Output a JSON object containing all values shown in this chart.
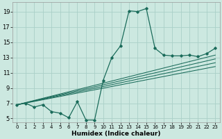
{
  "xlabel": "Humidex (Indice chaleur)",
  "ylabel": "",
  "bg_color": "#cce8e0",
  "line_color": "#1a6b5a",
  "grid_color": "#aad0c8",
  "xlim": [
    -0.5,
    23.5
  ],
  "ylim": [
    4.5,
    20.2
  ],
  "xticks": [
    0,
    1,
    2,
    3,
    4,
    5,
    6,
    7,
    8,
    9,
    10,
    11,
    12,
    13,
    14,
    15,
    16,
    17,
    18,
    19,
    20,
    21,
    22,
    23
  ],
  "yticks": [
    5,
    7,
    9,
    11,
    13,
    15,
    17,
    19
  ],
  "curve1_x": [
    0,
    1,
    2,
    3,
    4,
    5,
    6,
    7,
    8,
    9,
    10,
    11,
    12,
    13,
    14,
    15,
    16,
    17,
    18,
    19,
    20,
    21,
    22,
    23
  ],
  "curve1_y": [
    6.8,
    7.0,
    6.5,
    6.8,
    5.9,
    5.7,
    5.1,
    7.2,
    4.8,
    4.8,
    10.0,
    13.0,
    14.5,
    19.1,
    19.0,
    19.4,
    14.2,
    13.3,
    13.2,
    13.2,
    13.3,
    13.1,
    13.5,
    14.2
  ],
  "straight_lines": [
    {
      "x": [
        0,
        23
      ],
      "y": [
        6.8,
        13.3
      ]
    },
    {
      "x": [
        0,
        23
      ],
      "y": [
        6.8,
        12.8
      ]
    },
    {
      "x": [
        0,
        23
      ],
      "y": [
        6.8,
        12.3
      ]
    },
    {
      "x": [
        0,
        23
      ],
      "y": [
        6.8,
        11.8
      ]
    }
  ]
}
